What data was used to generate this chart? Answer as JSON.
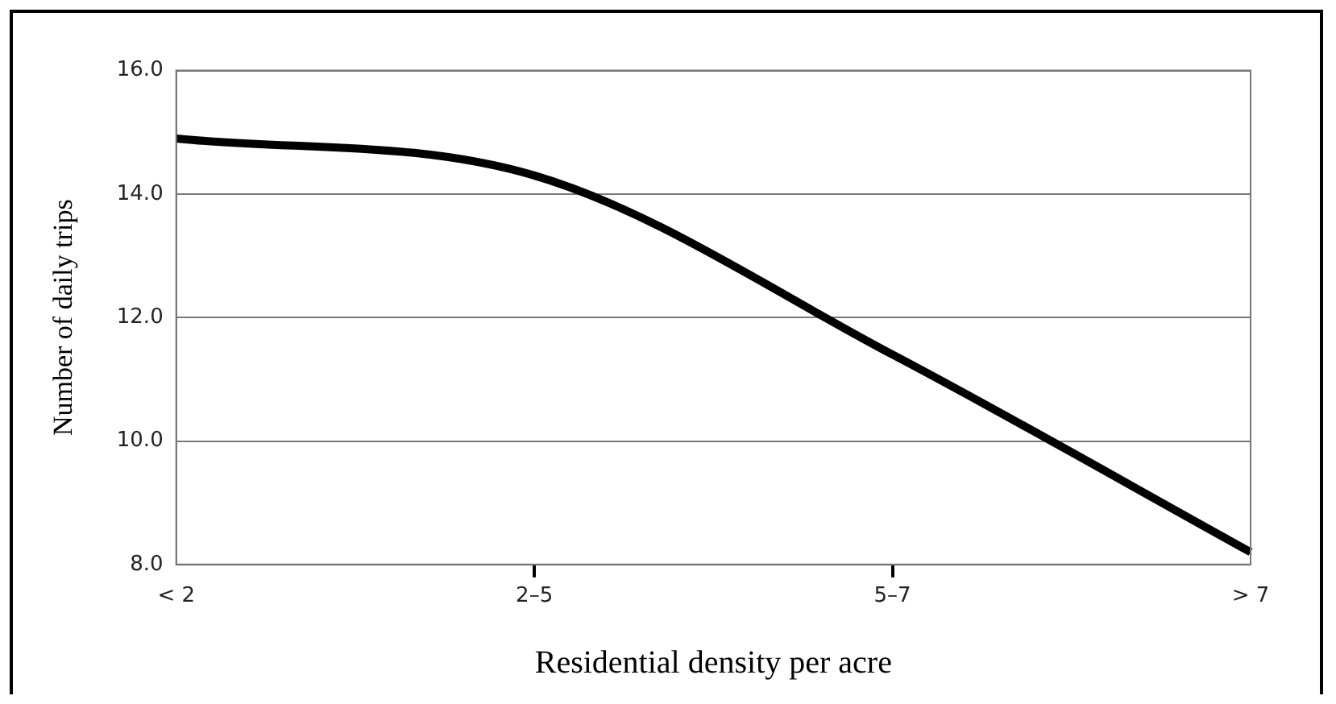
{
  "chart_data": {
    "type": "line",
    "xlabel": "Residential density per acre",
    "ylabel": "Number of daily trips",
    "categories": [
      "< 2",
      "2–5",
      "5–7",
      "> 7"
    ],
    "series": [
      {
        "color": "#000000",
        "values": [
          14.9,
          14.3,
          11.4,
          8.2
        ]
      }
    ],
    "ylim": [
      8,
      16
    ],
    "yticks": [
      {
        "value": 8,
        "label": "8.0"
      },
      {
        "value": 10,
        "label": "10.0"
      },
      {
        "value": 12,
        "label": "12.0"
      },
      {
        "value": 14,
        "label": "14.0"
      },
      {
        "value": 16,
        "label": "16.0"
      }
    ],
    "grid": "y",
    "legend": false,
    "marker": "none",
    "line_style": "solid"
  }
}
